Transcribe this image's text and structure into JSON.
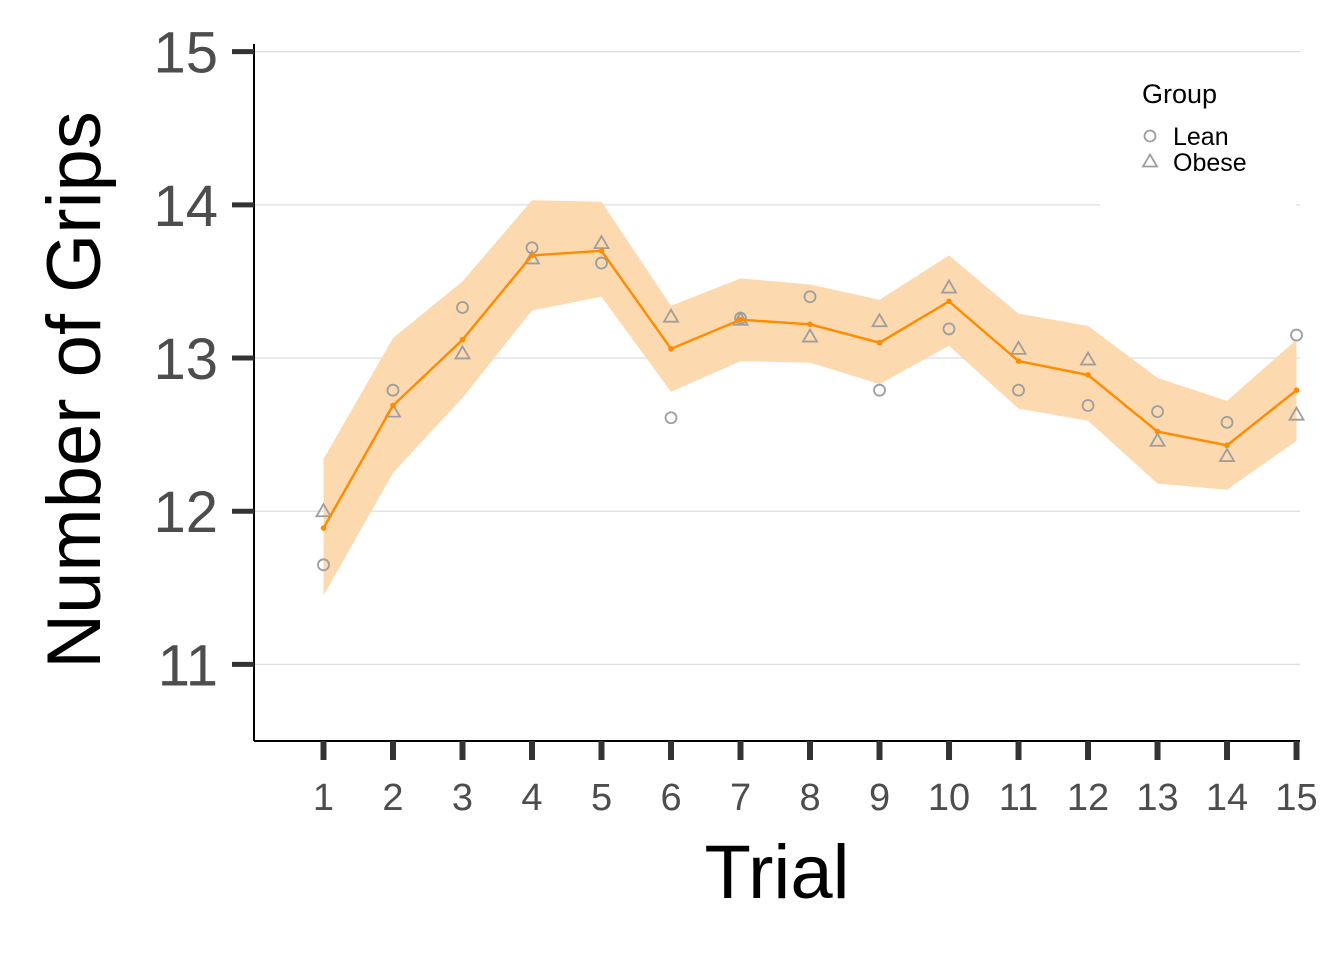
{
  "chart_data": {
    "type": "line",
    "xlabel": "Trial",
    "ylabel": "Number of Grips",
    "x": [
      1,
      2,
      3,
      4,
      5,
      6,
      7,
      8,
      9,
      10,
      11,
      12,
      13,
      14,
      15
    ],
    "ylim": [
      10.5,
      15.05
    ],
    "xlim": [
      0.0,
      15.05
    ],
    "yticks": [
      11,
      12,
      13,
      14,
      15
    ],
    "grid": "horizontal major gridlines",
    "legend": {
      "title": "Group",
      "position": "top-right",
      "entries": [
        {
          "label": "Lean",
          "shape": "circle"
        },
        {
          "label": "Obese",
          "shape": "triangle"
        }
      ]
    },
    "series": [
      {
        "name": "Lean",
        "kind": "points",
        "shape": "circle",
        "values": [
          11.65,
          12.79,
          13.33,
          13.72,
          13.62,
          12.61,
          13.26,
          13.4,
          12.79,
          13.19,
          12.79,
          12.69,
          12.65,
          12.58,
          13.15
        ]
      },
      {
        "name": "Obese",
        "kind": "points",
        "shape": "triangle",
        "values": [
          12.0,
          12.65,
          13.03,
          13.65,
          13.75,
          13.27,
          13.25,
          13.14,
          13.24,
          13.46,
          13.06,
          12.99,
          12.46,
          12.36,
          12.63
        ]
      },
      {
        "kind": "line-mean",
        "values": [
          11.89,
          12.69,
          13.12,
          13.67,
          13.7,
          13.06,
          13.25,
          13.22,
          13.1,
          13.37,
          12.98,
          12.89,
          12.52,
          12.43,
          12.79
        ]
      }
    ],
    "ribbon": {
      "upper": [
        12.34,
        13.13,
        13.5,
        14.03,
        14.02,
        13.34,
        13.52,
        13.48,
        13.38,
        13.67,
        13.29,
        13.21,
        12.87,
        12.72,
        13.12
      ],
      "lower": [
        11.45,
        12.25,
        12.74,
        13.31,
        13.4,
        12.78,
        12.98,
        12.97,
        12.83,
        13.08,
        12.67,
        12.59,
        12.18,
        12.14,
        12.46
      ]
    },
    "colors": {
      "line": "#ff8c00",
      "ribbon": "#fdd9b0",
      "points": "#9e9e9e",
      "grid": "#dedede",
      "axis": "#333333",
      "tick_text": "#4d4d4d"
    }
  }
}
